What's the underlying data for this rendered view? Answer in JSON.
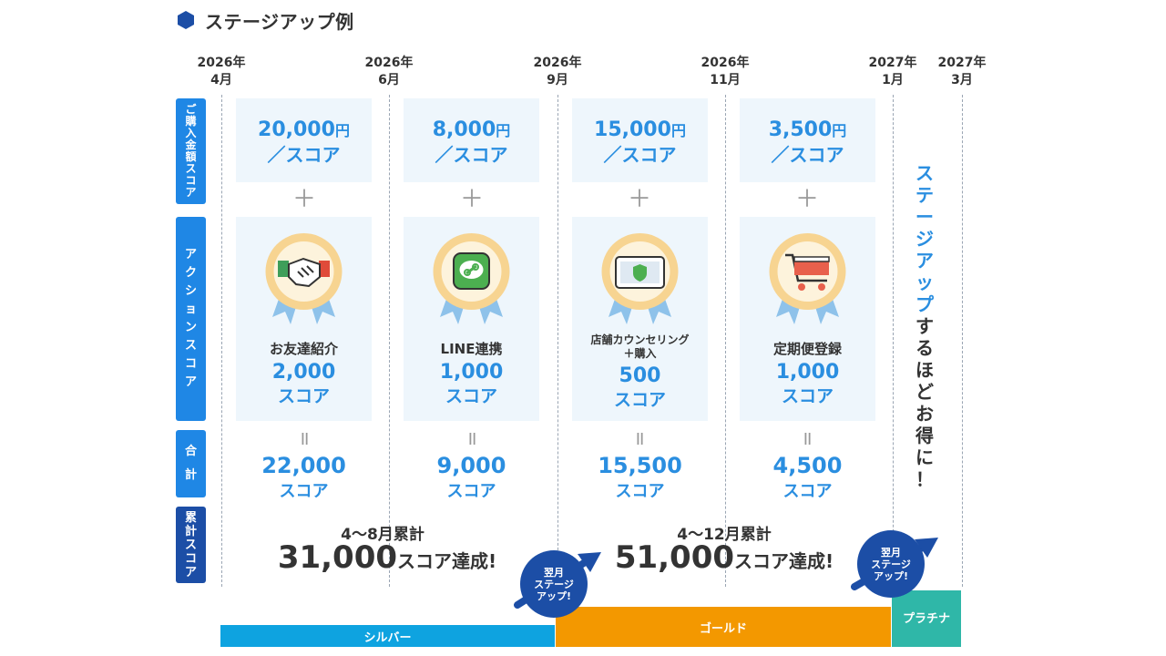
{
  "title": "ステージアップ例",
  "dates": [
    {
      "year": "2026年",
      "month": "4月"
    },
    {
      "year": "2026年",
      "month": "6月"
    },
    {
      "year": "2026年",
      "month": "9月"
    },
    {
      "year": "2026年",
      "month": "11月"
    },
    {
      "year": "2027年",
      "month": "1月"
    },
    {
      "year": "2027年",
      "month": "3月"
    }
  ],
  "row_labels": {
    "purchase": [
      "ご",
      "購",
      "入",
      "金",
      "額",
      "ス",
      "コ",
      "ア"
    ],
    "action": [
      "ア",
      "ク",
      "シ",
      "ョ",
      "ン",
      "ス",
      "コ",
      "ア"
    ],
    "total": [
      "合",
      "計"
    ],
    "cumulative": [
      "累",
      "計",
      "ス",
      "コ",
      "ア"
    ]
  },
  "plus_sign": "＋",
  "equals_sign": "II",
  "columns": [
    {
      "price": "20,000",
      "yen": "円",
      "per_score": "／スコア",
      "icon": "handshake-icon",
      "action_name": "お友達紹介",
      "action_name2": "",
      "action_score": "2,000",
      "action_unit": "スコア",
      "total": "22,000",
      "total_unit": "スコア"
    },
    {
      "price": "8,000",
      "yen": "円",
      "per_score": "／スコア",
      "icon": "line-link-icon",
      "action_name": "LINE連携",
      "action_name2": "",
      "action_score": "1,000",
      "action_unit": "スコア",
      "total": "9,000",
      "total_unit": "スコア"
    },
    {
      "price": "15,000",
      "yen": "円",
      "per_score": "／スコア",
      "icon": "tablet-shield-icon",
      "action_name": "店舗カウンセリング",
      "action_name2": "＋購入",
      "action_score": "500",
      "action_unit": "スコア",
      "total": "15,500",
      "total_unit": "スコア"
    },
    {
      "price": "3,500",
      "yen": "円",
      "per_score": "／スコア",
      "icon": "shopping-cart-icon",
      "action_name": "定期便登録",
      "action_name2": "",
      "action_score": "1,000",
      "action_unit": "スコア",
      "total": "4,500",
      "total_unit": "スコア"
    }
  ],
  "cumulative": [
    {
      "label": "4〜8月累計",
      "value": "31,000",
      "suffix": "スコア達成!"
    },
    {
      "label": "4〜12月累計",
      "value": "51,000",
      "suffix": "スコア達成!"
    }
  ],
  "side_text": {
    "blue": [
      "ス",
      "テ",
      "ー",
      "ジ",
      "ア",
      "ッ",
      "プ"
    ],
    "dark": [
      "す",
      "る",
      "ほ",
      "ど",
      "お",
      "得",
      "に",
      "！"
    ]
  },
  "stage_up_badge": [
    "翌月",
    "ステージ",
    "アップ!"
  ],
  "stages": [
    {
      "name": "シルバー",
      "color": "#0ea3e0"
    },
    {
      "name": "ゴールド",
      "color": "#f39800"
    },
    {
      "name": "プラチナ",
      "color": "#2fb7a8"
    }
  ],
  "colors": {
    "accent_blue": "#2a8ee0",
    "navy": "#1c4ea6",
    "label_blue": "#1f87e5",
    "box_bg": "#eef6fc"
  }
}
